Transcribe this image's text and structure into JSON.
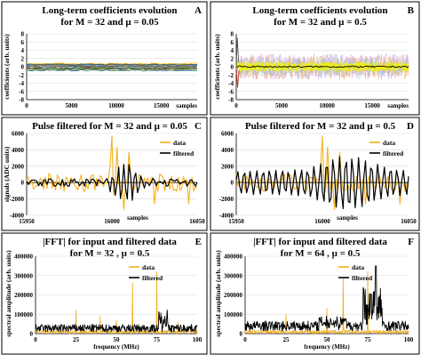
{
  "figure": {
    "panels": [
      {
        "letter": "A",
        "title_lines": [
          "Long-term coefficients evolution",
          "for M = 32 and μ = 0.05"
        ],
        "ylabel": "coefficients (arb. units)",
        "xlabel": "samples",
        "xticks": [
          "0",
          "5000",
          "10000",
          "15000"
        ],
        "yticks": [
          "8",
          "6",
          "4",
          "2",
          "0",
          "-2",
          "-4",
          "-6",
          "-8"
        ]
      },
      {
        "letter": "B",
        "title_lines": [
          "Long-term coefficients evolution",
          "for M = 32 and μ = 0.5"
        ],
        "ylabel": "coefficients (arb. units)",
        "xlabel": "samples",
        "xticks": [
          "0",
          "5000",
          "10000",
          "15000"
        ],
        "yticks": [
          "8",
          "6",
          "4",
          "2",
          "0",
          "-2",
          "-4",
          "-6",
          "-8"
        ]
      },
      {
        "letter": "C",
        "title_lines": [
          "Pulse filtered for M = 32 and μ = 0.05"
        ],
        "ylabel": "signals (ADC units)",
        "xlabel": "samples",
        "xticks": [
          "15950",
          "16000",
          "16050"
        ],
        "yticks": [
          "6000",
          "4000",
          "2000",
          "0",
          "-2000",
          "-4000"
        ],
        "legend": [
          "data",
          "filtered"
        ]
      },
      {
        "letter": "D",
        "title_lines": [
          "Pulse filtered for M = 32 and μ = 0.5"
        ],
        "ylabel": "",
        "xlabel": "samples",
        "xticks": [
          "15950",
          "16000",
          "16050"
        ],
        "yticks": [
          "6000",
          "4000",
          "2000",
          "0",
          "-2000",
          "-4000"
        ],
        "legend": [
          "data",
          "filtered"
        ]
      },
      {
        "letter": "E",
        "title_lines": [
          "|FFT| for input and filtered data",
          "for M = 32 , μ = 0.5"
        ],
        "ylabel": "spectral amplitude (arb. units)",
        "xlabel": "frequency (MHz)",
        "xticks": [
          "0",
          "25",
          "50",
          "75",
          "100"
        ],
        "yticks": [
          "400000",
          "300000",
          "200000",
          "100000",
          "0"
        ],
        "legend": [
          "data",
          "filtered"
        ]
      },
      {
        "letter": "F",
        "title_lines": [
          "|FFT| for input and filtered data",
          "for M = 64 , μ = 0.5"
        ],
        "ylabel": "spectral amplitude (arb. units)",
        "xlabel": "frequency (MHz)",
        "xticks": [
          "0",
          "25",
          "50",
          "75",
          "100"
        ],
        "yticks": [
          "400000",
          "300000",
          "200000",
          "100000",
          "0"
        ],
        "legend": [
          "data",
          "filtered"
        ]
      }
    ]
  },
  "colors": {
    "data": "#f5b120",
    "filtered": "#000000",
    "band": "#c8d8f0",
    "yellow_band": "#f2f200"
  },
  "chart_data": [
    {
      "type": "line",
      "title": "Long-term coefficients evolution for M = 32 and μ = 0.05",
      "xlabel": "samples",
      "ylabel": "coefficients (arb. units)",
      "xlim": [
        0,
        19000
      ],
      "ylim": [
        -8,
        8
      ],
      "description_series": "32 coefficient traces, roughly constant between -1 and 1"
    },
    {
      "type": "line",
      "title": "Long-term coefficients evolution for M = 32 and μ = 0.5",
      "xlabel": "samples",
      "ylabel": "coefficients (arb. units)",
      "xlim": [
        0,
        19000
      ],
      "ylim": [
        -8,
        8
      ],
      "description_series": "32 coefficient traces fluctuating between about -3 and 3, initial transient near 7"
    },
    {
      "type": "line",
      "title": "Pulse filtered for M = 32 and μ = 0.05",
      "xlabel": "samples",
      "ylabel": "signals (ADC units)",
      "xlim": [
        15950,
        16050
      ],
      "ylim": [
        -4000,
        6000
      ],
      "series": [
        {
          "name": "data",
          "peak": [
            16000,
            5700
          ]
        },
        {
          "name": "filtered",
          "peak": [
            16005,
            2700
          ]
        }
      ]
    },
    {
      "type": "line",
      "title": "Pulse filtered for M = 32 and μ = 0.5",
      "xlabel": "samples",
      "ylabel": "signals (ADC units)",
      "xlim": [
        15950,
        16050
      ],
      "ylim": [
        -4000,
        6000
      ],
      "series": [
        {
          "name": "data",
          "peak": [
            16000,
            5700
          ]
        },
        {
          "name": "filtered",
          "peak": [
            16020,
            3500
          ]
        }
      ]
    },
    {
      "type": "line",
      "title": "|FFT| for input and filtered data for M = 32 , μ = 0.5",
      "xlabel": "frequency (MHz)",
      "ylabel": "spectral amplitude (arb. units)",
      "xlim": [
        0,
        100
      ],
      "ylim": [
        0,
        400000
      ],
      "series": [
        {
          "name": "data",
          "spikes": [
            [
              25,
              120000
            ],
            [
              40,
              90000
            ],
            [
              50,
              70000
            ],
            [
              60,
              260000
            ],
            [
              75,
              320000
            ],
            [
              88,
              60000
            ]
          ]
        },
        {
          "name": "filtered",
          "spikes": [
            [
              80,
              130000
            ]
          ]
        }
      ]
    },
    {
      "type": "line",
      "title": "|FFT| for input and filtered data for M = 64 , μ = 0.5",
      "xlabel": "frequency (MHz)",
      "ylabel": "spectral amplitude (arb. units)",
      "xlim": [
        0,
        100
      ],
      "ylim": [
        0,
        400000
      ],
      "series": [
        {
          "name": "data",
          "spikes": [
            [
              25,
              100000
            ],
            [
              50,
              130000
            ],
            [
              60,
              290000
            ],
            [
              75,
              320000
            ]
          ]
        },
        {
          "name": "filtered",
          "spikes": [
            [
              80,
              350000
            ],
            [
              77,
              250000
            ]
          ]
        }
      ]
    }
  ]
}
